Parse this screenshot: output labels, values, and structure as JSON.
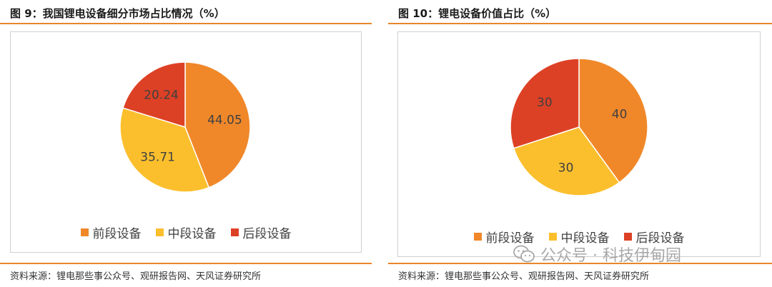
{
  "colors": {
    "front": "#f0882a",
    "middle": "#fbbf2d",
    "back": "#dd4125",
    "accent_rule": "#e8862a",
    "label_text": "#404040"
  },
  "left": {
    "title": "图 9：我国锂电设备细分市场占比情况（%）",
    "source": "资料来源：锂电那些事公众号、观研报告网、天风证券研究所"
  },
  "right": {
    "title": "图 10：锂电设备价值占比（%）",
    "source": "资料来源：锂电那些事公众号、观研报告网、天风证券研究所"
  },
  "watermark": {
    "text": "公众号 · 科技伊甸园",
    "icon": "wechat-icon"
  },
  "chart_data": [
    {
      "type": "pie",
      "title": "",
      "categories": [
        "前段设备",
        "中段设备",
        "后段设备"
      ],
      "values": [
        44.05,
        35.71,
        20.24
      ],
      "value_labels": [
        "44.05",
        "35.71",
        "20.24"
      ],
      "colors": [
        "#f0882a",
        "#fbbf2d",
        "#dd4125"
      ],
      "legend_position": "bottom"
    },
    {
      "type": "pie",
      "title": "",
      "categories": [
        "前段设备",
        "中段设备",
        "后段设备"
      ],
      "values": [
        40,
        30,
        30
      ],
      "value_labels": [
        "40",
        "30",
        "30"
      ],
      "colors": [
        "#f0882a",
        "#fbbf2d",
        "#dd4125"
      ],
      "legend_position": "bottom"
    }
  ]
}
